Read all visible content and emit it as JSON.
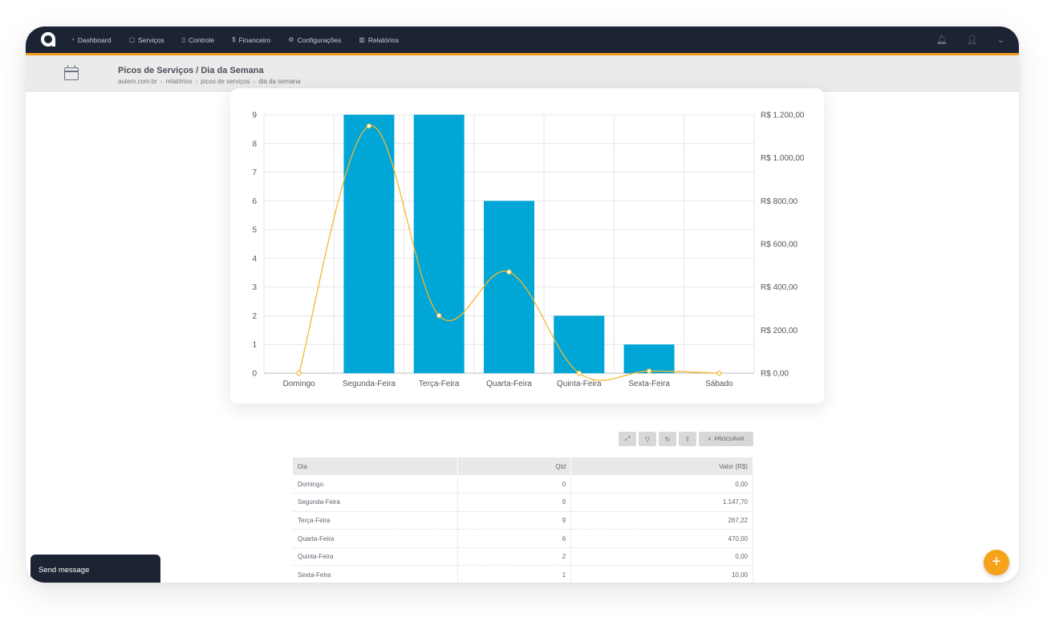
{
  "nav": {
    "items": [
      {
        "label": "Dashboard",
        "icon": "gauge-icon"
      },
      {
        "label": "Serviços",
        "icon": "file-icon"
      },
      {
        "label": "Controle",
        "icon": "clipboard-icon"
      },
      {
        "label": "Financeiro",
        "icon": "dollar-icon"
      },
      {
        "label": "Configurações",
        "icon": "gear-icon"
      },
      {
        "label": "Relatórios",
        "icon": "bar-chart-icon"
      }
    ],
    "right_icons": [
      "bell-icon",
      "user-icon",
      "chevron-down-icon"
    ]
  },
  "header": {
    "title": "Picos de Serviços / Dia da Semana",
    "breadcrumb": [
      "autem.com.br",
      "relatórios",
      "picos de serviços",
      "dia da semana"
    ]
  },
  "colors": {
    "topbar": "#1c2433",
    "accent": "#f39a1e",
    "bar": "#00a6d6",
    "line": "#f5b82e"
  },
  "chart_data": {
    "type": "bar",
    "categories": [
      "Domingo",
      "Segunda-Feira",
      "Terça-Feira",
      "Quarta-Feira",
      "Quinta-Feira",
      "Sexta-Feira",
      "Sábado"
    ],
    "series": [
      {
        "axis": "left",
        "type": "bar",
        "values": [
          0,
          9,
          9,
          6,
          2,
          1,
          0
        ]
      },
      {
        "axis": "right",
        "type": "line",
        "values": [
          0,
          1147.7,
          267.22,
          470.0,
          0,
          10.0,
          0
        ]
      }
    ],
    "y_left": {
      "ticks": [
        "0",
        "1",
        "2",
        "3",
        "4",
        "5",
        "6",
        "7",
        "8",
        "9"
      ],
      "ylim": [
        0,
        9
      ]
    },
    "y_right": {
      "ticks": [
        "R$ 0,00",
        "R$ 200,00",
        "R$ 400,00",
        "R$ 600,00",
        "R$ 800,00",
        "R$ 1.000,00",
        "R$ 1.200,00"
      ],
      "ylim": [
        0,
        1200
      ]
    },
    "grid": true
  },
  "toolbar": {
    "buttons": [
      "expand-icon",
      "filter-icon",
      "refresh-icon",
      "export-icon"
    ],
    "search_label": "PROCURAR"
  },
  "table": {
    "headers": {
      "dia": "Dia",
      "qtd": "Qtd",
      "valor": "Valor (R$)"
    },
    "rows": [
      {
        "dia": "Domingo",
        "qtd": "0",
        "valor": "0,00"
      },
      {
        "dia": "Segunda-Feira",
        "qtd": "9",
        "valor": "1.147,70"
      },
      {
        "dia": "Terça-Feira",
        "qtd": "9",
        "valor": "267,22"
      },
      {
        "dia": "Quarta-Feira",
        "qtd": "6",
        "valor": "470,00"
      },
      {
        "dia": "Quinta-Feira",
        "qtd": "2",
        "valor": "0,00"
      },
      {
        "dia": "Sexta-Feira",
        "qtd": "1",
        "valor": "10,00"
      }
    ]
  },
  "chat": {
    "label": "Send message"
  },
  "fab": {
    "label": "+"
  }
}
